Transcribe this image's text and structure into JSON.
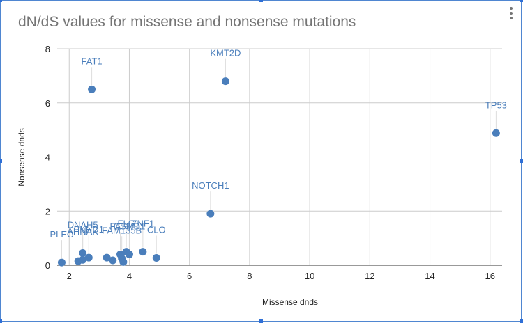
{
  "chart_data": {
    "type": "scatter",
    "title": "dN/dS values for missense and nonsense mutations",
    "xlabel": "Missense dnds",
    "ylabel": "Nonsense dnds",
    "xlim": [
      1.6,
      16.4
    ],
    "ylim": [
      0,
      8
    ],
    "xticks": [
      2,
      4,
      6,
      8,
      10,
      12,
      14,
      16
    ],
    "yticks": [
      0,
      2,
      4,
      6,
      8
    ],
    "grid": true,
    "legend": "none",
    "color": "#4a7ebb",
    "points": [
      {
        "label": "FAT1",
        "x": 2.75,
        "y": 6.5
      },
      {
        "label": "KMT2D",
        "x": 7.2,
        "y": 6.8
      },
      {
        "label": "TP53",
        "x": 16.2,
        "y": 4.88
      },
      {
        "label": "NOTCH1",
        "x": 6.7,
        "y": 1.9
      },
      {
        "label": "PLEC",
        "x": 1.75,
        "y": 0.1
      },
      {
        "label": "DNAH5",
        "x": 2.45,
        "y": 0.45
      },
      {
        "label": "AHNAK",
        "x": 2.45,
        "y": 0.2
      },
      {
        "label": "PKHD1",
        "x": 2.65,
        "y": 0.28
      },
      {
        "label": "FAM135B",
        "x": 3.75,
        "y": 0.25
      },
      {
        "label": "FLG",
        "x": 3.9,
        "y": 0.5
      },
      {
        "label": "CSMD1",
        "x": 4.0,
        "y": 0.4
      },
      {
        "label": "FAT3",
        "x": 3.7,
        "y": 0.4
      },
      {
        "label": "ZNF1",
        "x": 4.45,
        "y": 0.5
      },
      {
        "label": "CLO",
        "x": 4.9,
        "y": 0.27
      },
      {
        "label": "",
        "x": 2.3,
        "y": 0.15
      },
      {
        "label": "",
        "x": 3.25,
        "y": 0.28
      },
      {
        "label": "",
        "x": 3.45,
        "y": 0.18
      },
      {
        "label": "",
        "x": 3.8,
        "y": 0.12
      }
    ]
  }
}
